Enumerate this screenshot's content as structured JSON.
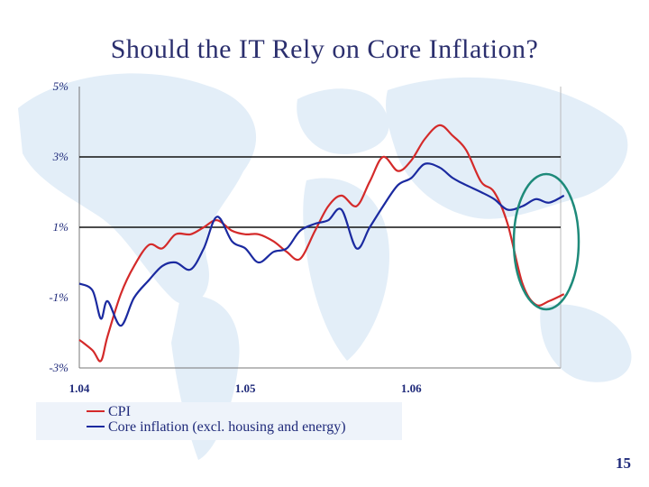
{
  "slide": {
    "title": "Should the IT Rely on Core Inflation?",
    "page_number": "15"
  },
  "colors": {
    "cpi": "#d42a2a",
    "core": "#1b2aa0",
    "reference_lines": "#111111",
    "axis": "#777777",
    "highlight_ellipse": "#1e8a7a",
    "text": "#1f2a7a"
  },
  "chart_data": {
    "type": "line",
    "title": "",
    "xlabel": "",
    "ylabel": "",
    "x_tick_labels": [
      "1.04",
      "1.05",
      "1.06"
    ],
    "x_tick_values": [
      2004,
      2005,
      2006
    ],
    "xlim": [
      2004,
      2006.9
    ],
    "y_tick_labels": [
      "5%",
      "3%",
      "1%",
      "-1%",
      "-3%"
    ],
    "y_tick_values": [
      5,
      3,
      1,
      -1,
      -3
    ],
    "ylim": [
      -3,
      5
    ],
    "reference_lines_y": [
      3,
      1
    ],
    "grid": false,
    "legend_position": "bottom-left",
    "annotation": "ellipse highlighting most recent months",
    "series": [
      {
        "name": "CPI",
        "color": "#d42a2a",
        "x": [
          2004.0,
          2004.08,
          2004.13,
          2004.17,
          2004.25,
          2004.33,
          2004.42,
          2004.5,
          2004.58,
          2004.67,
          2004.75,
          2004.83,
          2004.92,
          2005.0,
          2005.08,
          2005.17,
          2005.25,
          2005.33,
          2005.42,
          2005.5,
          2005.58,
          2005.67,
          2005.75,
          2005.83,
          2005.92,
          2006.0,
          2006.08,
          2006.17,
          2006.25,
          2006.33,
          2006.42,
          2006.5,
          2006.58,
          2006.67,
          2006.75,
          2006.83,
          2006.92
        ],
        "y": [
          -2.2,
          -2.5,
          -2.8,
          -2.1,
          -0.9,
          -0.1,
          0.5,
          0.4,
          0.8,
          0.8,
          1.0,
          1.2,
          0.9,
          0.8,
          0.8,
          0.6,
          0.3,
          0.1,
          0.9,
          1.6,
          1.9,
          1.6,
          2.3,
          3.0,
          2.6,
          2.9,
          3.5,
          3.9,
          3.6,
          3.2,
          2.3,
          2.0,
          1.1,
          -0.6,
          -1.2,
          -1.1,
          -0.9
        ]
      },
      {
        "name": "Core inflation (excl. housing and energy)",
        "color": "#1b2aa0",
        "x": [
          2004.0,
          2004.08,
          2004.13,
          2004.17,
          2004.25,
          2004.33,
          2004.42,
          2004.5,
          2004.58,
          2004.67,
          2004.75,
          2004.83,
          2004.92,
          2005.0,
          2005.08,
          2005.17,
          2005.25,
          2005.33,
          2005.42,
          2005.5,
          2005.58,
          2005.67,
          2005.75,
          2005.83,
          2005.92,
          2006.0,
          2006.08,
          2006.17,
          2006.25,
          2006.33,
          2006.42,
          2006.5,
          2006.58,
          2006.67,
          2006.75,
          2006.83,
          2006.92
        ],
        "y": [
          -0.6,
          -0.8,
          -1.6,
          -1.1,
          -1.8,
          -1.0,
          -0.5,
          -0.1,
          0.0,
          -0.2,
          0.4,
          1.3,
          0.6,
          0.4,
          0.0,
          0.3,
          0.4,
          0.9,
          1.1,
          1.2,
          1.5,
          0.4,
          1.0,
          1.6,
          2.2,
          2.4,
          2.8,
          2.7,
          2.4,
          2.2,
          2.0,
          1.8,
          1.5,
          1.6,
          1.8,
          1.7,
          1.9
        ]
      }
    ]
  }
}
